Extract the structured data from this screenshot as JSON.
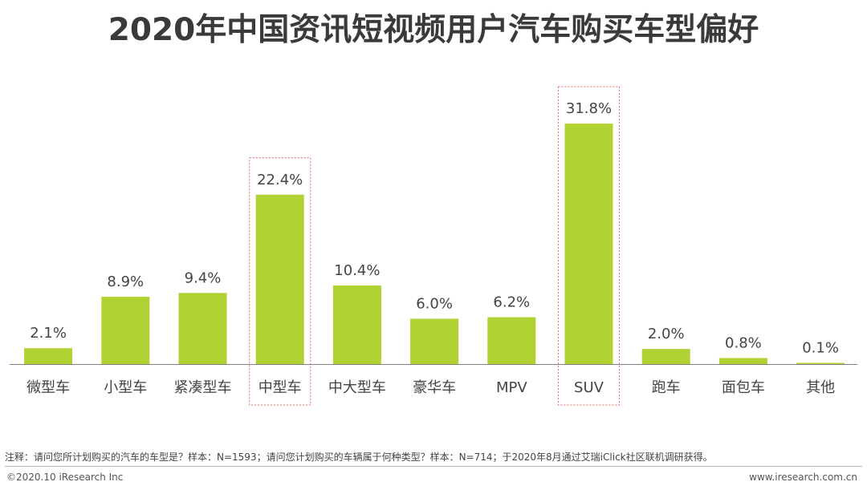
{
  "chart_data": {
    "type": "bar",
    "title": "2020年中国资讯短视频用户汽车购买车型偏好",
    "categories": [
      "微型车",
      "小型车",
      "紧凑型车",
      "中型车",
      "中大型车",
      "豪华车",
      "MPV",
      "SUV",
      "跑车",
      "面包车",
      "其他"
    ],
    "values": [
      2.1,
      8.9,
      9.4,
      22.4,
      10.4,
      6.0,
      6.2,
      31.8,
      2.0,
      0.8,
      0.1
    ],
    "value_labels": [
      "2.1%",
      "8.9%",
      "9.4%",
      "22.4%",
      "10.4%",
      "6.0%",
      "6.2%",
      "31.8%",
      "2.0%",
      "0.8%",
      "0.1%"
    ],
    "highlighted": [
      "中型车",
      "SUV"
    ],
    "unit": "%",
    "xlabel": "",
    "ylabel": "",
    "ylim": [
      0,
      35
    ],
    "grid": false,
    "bar_color": "#b0d232",
    "highlight_border_color": "#e46a6a"
  },
  "footnote": "注释：请问您所计划购买的汽车的车型是？样本：N=1593；请问您计划购买的车辆属于何种类型？样本：N=714；于2020年8月通过艾瑞iClick社区联机调研获得。",
  "copyright": "©2020.10 iResearch Inc",
  "site": "www.iresearch.com.cn"
}
